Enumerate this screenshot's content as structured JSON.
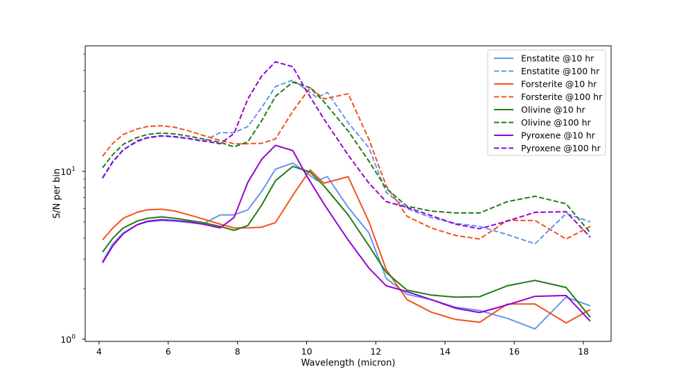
{
  "chart_data": {
    "type": "line",
    "title": "",
    "xlabel": "Wavelength (micron)",
    "ylabel": "S/N per bin",
    "yscale": "log",
    "xlim": [
      3.6,
      18.8
    ],
    "ylim": [
      0.97,
      56
    ],
    "x_ticks": [
      4,
      6,
      8,
      10,
      12,
      14,
      16,
      18
    ],
    "y_ticks": [
      {
        "value": 1,
        "label": "10",
        "exp": "0"
      },
      {
        "value": 10,
        "label": "10",
        "exp": "1"
      }
    ],
    "legend_position": "top-right",
    "series": [
      {
        "name": "Enstatite @10 hr",
        "color": "#6495ed",
        "style": "solid",
        "x": [
          4.1,
          4.4,
          4.7,
          5.1,
          5.4,
          5.8,
          6.2,
          6.6,
          7.0,
          7.5,
          7.9,
          8.3,
          8.7,
          9.1,
          9.6,
          10.0,
          10.3,
          10.6,
          11.2,
          11.8,
          12.3,
          12.9,
          13.6,
          14.3,
          15.0,
          15.8,
          16.6,
          17.5,
          18.2
        ],
        "y": [
          2.9,
          3.7,
          4.3,
          4.8,
          5.0,
          5.1,
          5.05,
          4.95,
          4.85,
          5.5,
          5.5,
          5.9,
          7.6,
          10.3,
          11.2,
          9.8,
          8.8,
          9.3,
          6.1,
          4.3,
          2.3,
          1.85,
          1.72,
          1.55,
          1.48,
          1.33,
          1.15,
          1.78,
          1.58
        ]
      },
      {
        "name": "Enstatite @100 hr",
        "color": "#6495ed",
        "style": "dashed",
        "x": [
          4.1,
          4.4,
          4.7,
          5.1,
          5.4,
          5.8,
          6.2,
          6.6,
          7.0,
          7.5,
          7.9,
          8.3,
          8.7,
          9.1,
          9.6,
          10.0,
          10.3,
          10.6,
          11.2,
          11.8,
          12.3,
          12.9,
          13.6,
          14.3,
          15.0,
          15.8,
          16.6,
          17.5,
          18.2
        ],
        "y": [
          9.2,
          11.5,
          13.5,
          15.0,
          15.8,
          16.2,
          16.0,
          15.6,
          15.1,
          17.0,
          17.0,
          18.5,
          24.0,
          32.0,
          35.0,
          30.5,
          27.5,
          29.5,
          19.5,
          13.8,
          7.5,
          6.0,
          5.3,
          4.9,
          4.7,
          4.2,
          3.7,
          5.6,
          5.0
        ]
      },
      {
        "name": "Forsterite @10 hr",
        "color": "#f4511e",
        "style": "solid",
        "x": [
          4.1,
          4.4,
          4.7,
          5.1,
          5.4,
          5.8,
          6.2,
          6.6,
          7.0,
          7.5,
          7.9,
          8.3,
          8.7,
          9.1,
          9.6,
          10.1,
          10.5,
          11.2,
          11.8,
          12.3,
          12.9,
          13.6,
          14.3,
          15.0,
          15.8,
          16.6,
          17.5,
          18.2
        ],
        "y": [
          3.9,
          4.6,
          5.25,
          5.7,
          5.9,
          5.95,
          5.8,
          5.5,
          5.2,
          4.85,
          4.6,
          4.6,
          4.65,
          4.95,
          7.2,
          10.2,
          8.5,
          9.3,
          5.0,
          2.6,
          1.72,
          1.45,
          1.31,
          1.26,
          1.62,
          1.62,
          1.25,
          1.5
        ]
      },
      {
        "name": "Forsterite @100 hr",
        "color": "#f4511e",
        "style": "dashed",
        "x": [
          4.1,
          4.4,
          4.7,
          5.1,
          5.4,
          5.8,
          6.2,
          6.6,
          7.0,
          7.5,
          7.9,
          8.3,
          8.7,
          9.1,
          9.6,
          10.1,
          10.5,
          11.2,
          11.8,
          12.3,
          12.9,
          13.6,
          14.3,
          15.0,
          15.8,
          16.6,
          17.5,
          18.2
        ],
        "y": [
          12.3,
          14.7,
          16.6,
          17.9,
          18.5,
          18.7,
          18.3,
          17.4,
          16.4,
          15.3,
          14.6,
          14.6,
          14.7,
          15.6,
          22.8,
          31.5,
          27.0,
          29.0,
          15.5,
          8.2,
          5.4,
          4.6,
          4.15,
          3.95,
          5.1,
          5.1,
          3.95,
          4.7
        ]
      },
      {
        "name": "Olivine @10 hr",
        "color": "#1e7d12",
        "style": "solid",
        "x": [
          4.1,
          4.4,
          4.7,
          5.1,
          5.4,
          5.8,
          6.2,
          6.6,
          7.0,
          7.5,
          7.9,
          8.3,
          8.7,
          9.1,
          9.6,
          10.1,
          10.5,
          11.2,
          11.8,
          12.3,
          12.9,
          13.6,
          14.3,
          15.0,
          15.8,
          16.6,
          17.5,
          18.2
        ],
        "y": [
          3.3,
          4.0,
          4.6,
          5.05,
          5.25,
          5.35,
          5.25,
          5.1,
          4.95,
          4.7,
          4.45,
          4.75,
          6.3,
          8.8,
          10.7,
          9.9,
          8.2,
          5.5,
          3.6,
          2.5,
          1.96,
          1.83,
          1.78,
          1.79,
          2.08,
          2.24,
          2.03,
          1.35
        ]
      },
      {
        "name": "Olivine @100 hr",
        "color": "#1e7d12",
        "style": "dashed",
        "x": [
          4.1,
          4.4,
          4.7,
          5.1,
          5.4,
          5.8,
          6.2,
          6.6,
          7.0,
          7.5,
          7.9,
          8.3,
          8.7,
          9.1,
          9.6,
          10.1,
          10.5,
          11.2,
          11.8,
          12.3,
          12.9,
          13.6,
          14.3,
          15.0,
          15.8,
          16.6,
          17.5,
          18.2
        ],
        "y": [
          10.5,
          12.6,
          14.5,
          15.9,
          16.6,
          16.9,
          16.7,
          16.2,
          15.6,
          14.9,
          14.0,
          15.0,
          20.0,
          28.0,
          34.0,
          31.5,
          26.0,
          17.4,
          11.5,
          7.9,
          6.2,
          5.8,
          5.65,
          5.65,
          6.6,
          7.1,
          6.4,
          4.3
        ]
      },
      {
        "name": "Pyroxene @10 hr",
        "color": "#9400d3",
        "style": "solid",
        "x": [
          4.1,
          4.4,
          4.7,
          5.1,
          5.4,
          5.8,
          6.2,
          6.6,
          7.0,
          7.5,
          7.9,
          8.3,
          8.7,
          9.1,
          9.6,
          10.0,
          10.5,
          11.2,
          11.8,
          12.3,
          12.9,
          13.6,
          14.3,
          15.0,
          15.8,
          16.6,
          17.5,
          18.2
        ],
        "y": [
          2.85,
          3.6,
          4.25,
          4.8,
          5.05,
          5.15,
          5.1,
          5.0,
          4.85,
          4.6,
          5.3,
          8.6,
          11.8,
          14.3,
          13.3,
          9.4,
          6.4,
          3.9,
          2.65,
          2.08,
          1.92,
          1.72,
          1.53,
          1.44,
          1.6,
          1.8,
          1.82,
          1.28
        ]
      },
      {
        "name": "Pyroxene @100 hr",
        "color": "#9400d3",
        "style": "dashed",
        "x": [
          4.1,
          4.4,
          4.7,
          5.1,
          5.4,
          5.8,
          6.2,
          6.6,
          7.0,
          7.5,
          7.9,
          8.3,
          8.7,
          9.1,
          9.6,
          10.0,
          10.5,
          11.2,
          11.8,
          12.3,
          12.9,
          13.6,
          14.3,
          15.0,
          15.8,
          16.6,
          17.5,
          18.2
        ],
        "y": [
          9.1,
          11.4,
          13.4,
          15.2,
          15.9,
          16.3,
          16.1,
          15.7,
          15.2,
          14.6,
          16.8,
          27.0,
          37.0,
          45.0,
          42.0,
          30.0,
          20.5,
          12.5,
          8.5,
          6.6,
          6.1,
          5.45,
          4.85,
          4.55,
          5.05,
          5.7,
          5.75,
          4.05
        ]
      }
    ]
  }
}
